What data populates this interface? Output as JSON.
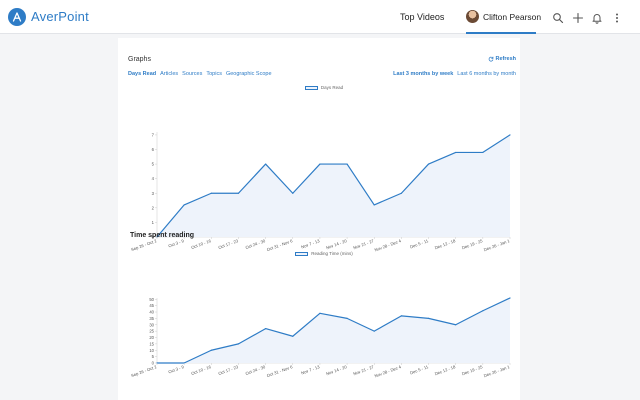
{
  "header": {
    "brand": "AverPoint",
    "nav_top_videos": "Top Videos",
    "user_name": "Clifton Pearson",
    "icons": [
      "search-icon",
      "plus-icon",
      "bell-icon",
      "more-vertical-icon"
    ],
    "accent": "#2e7cc6"
  },
  "graphs": {
    "title": "Graphs",
    "refresh_label": "Refresh",
    "tabs": [
      "Days Read",
      "Articles",
      "Sources",
      "Topics",
      "Geographic Scope"
    ],
    "active_tab": "Days Read",
    "ranges": [
      "Last 3 months by week",
      "Last 6 months by month"
    ],
    "active_range": "Last 3 months by week",
    "section_title": "Time spent reading"
  },
  "chart_data": [
    {
      "type": "area",
      "series": [
        {
          "name": "Days Read",
          "values": [
            0,
            2.2,
            3,
            3,
            5,
            3,
            5,
            5,
            2.2,
            3,
            5,
            5.8,
            5.8,
            7
          ]
        }
      ],
      "categories": [
        "Sep 26 - Oct 2",
        "Oct 3 - 9",
        "Oct 10 - 16",
        "Oct 17 - 23",
        "Oct 24 - 30",
        "Oct 31 - Nov 6",
        "Nov 7 - 13",
        "Nov 14 - 20",
        "Nov 21 - 27",
        "Nov 28 - Dec 4",
        "Dec 5 - 11",
        "Dec 12 - 18",
        "Dec 19 - 25",
        "Dec 26 - Jan 1"
      ],
      "yticks": [
        0,
        1,
        2,
        3,
        4,
        5,
        6,
        7
      ],
      "ylim": [
        0,
        7.2
      ],
      "legend_position": "top-center",
      "grid": false
    },
    {
      "type": "area",
      "series": [
        {
          "name": "Reading Time (mins)",
          "values": [
            0,
            0,
            10,
            15,
            27,
            21,
            39,
            35,
            25,
            37,
            35,
            30,
            41,
            51
          ]
        }
      ],
      "categories": [
        "Sep 26 - Oct 2",
        "Oct 3 - 9",
        "Oct 10 - 16",
        "Oct 17 - 23",
        "Oct 24 - 30",
        "Oct 31 - Nov 6",
        "Nov 7 - 13",
        "Nov 14 - 20",
        "Nov 21 - 27",
        "Nov 28 - Dec 4",
        "Dec 5 - 11",
        "Dec 12 - 18",
        "Dec 19 - 25",
        "Dec 26 - Jan 1"
      ],
      "yticks": [
        0,
        5,
        10,
        15,
        20,
        25,
        30,
        35,
        40,
        45,
        50
      ],
      "ylim": [
        0,
        51
      ],
      "legend_position": "top-center",
      "grid": false
    }
  ]
}
